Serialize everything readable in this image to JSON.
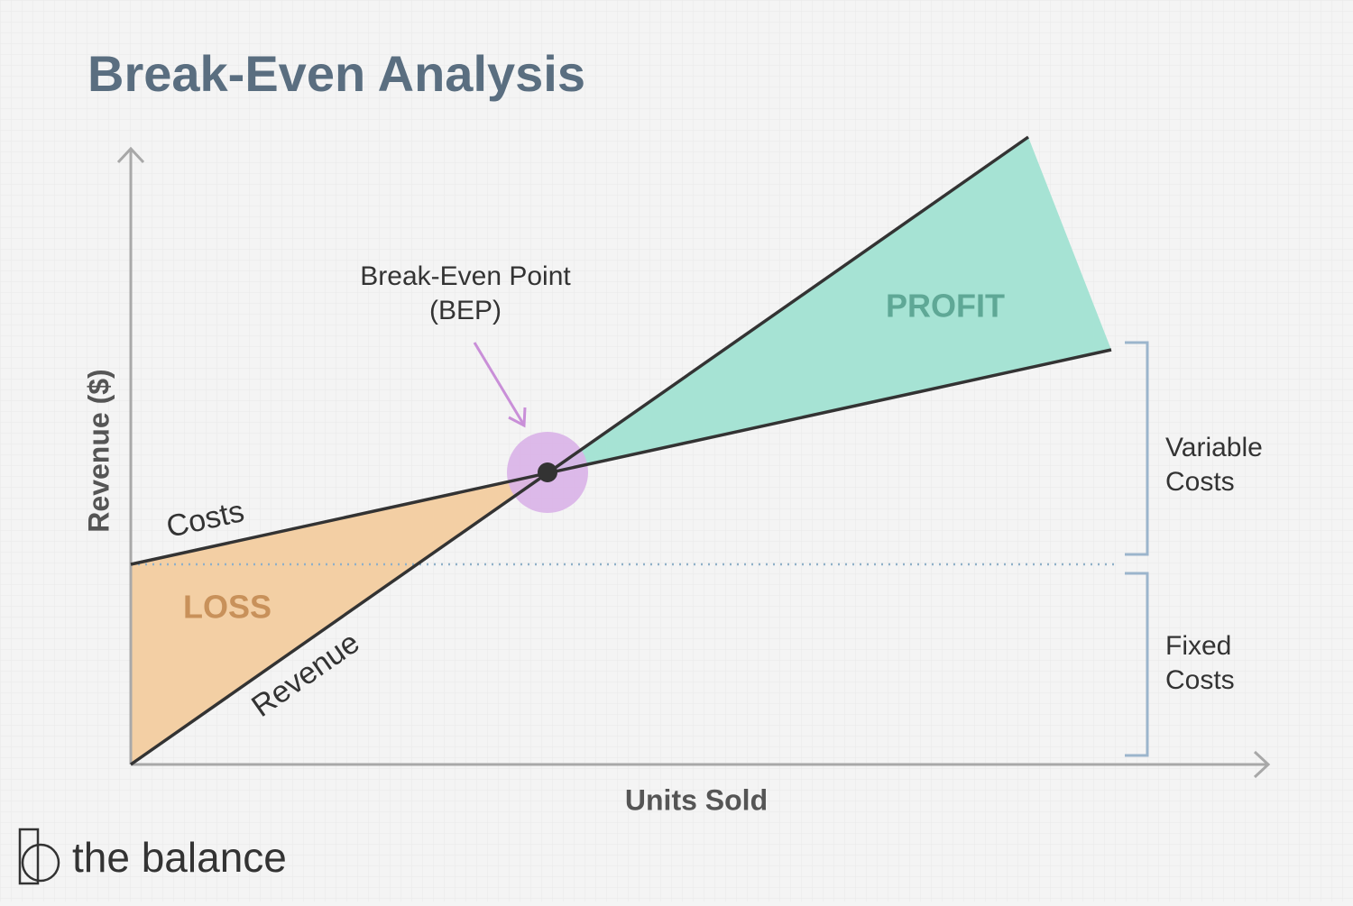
{
  "header": {
    "title": "Break-Even Analysis"
  },
  "axes": {
    "y_label": "Revenue ($)",
    "x_label": "Units Sold"
  },
  "lines": {
    "costs": "Costs",
    "revenue": "Revenue"
  },
  "regions": {
    "loss": "LOSS",
    "profit": "PROFIT"
  },
  "annotation": {
    "lines": [
      "Break-Even Point",
      "(BEP)"
    ]
  },
  "brackets": {
    "variable": [
      "Variable",
      "Costs"
    ],
    "fixed": [
      "Fixed",
      "Costs"
    ]
  },
  "logo": {
    "text": "the balance"
  }
}
